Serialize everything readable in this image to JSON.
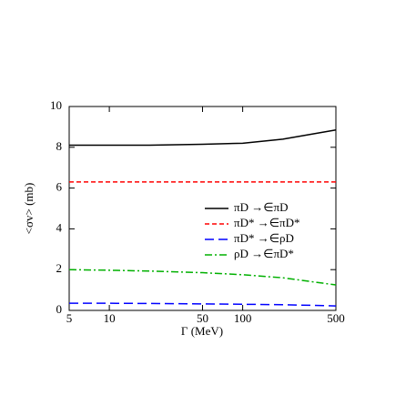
{
  "chart_data": {
    "type": "line",
    "xlabel": "Γ (MeV)",
    "ylabel": "<σv> (mb)",
    "x": [
      5,
      10,
      20,
      50,
      100,
      200,
      500
    ],
    "xscale": "log",
    "xlim": [
      5,
      500
    ],
    "xticks": [
      5,
      10,
      50,
      100,
      500
    ],
    "ylim": [
      0,
      10
    ],
    "yticks": [
      0,
      2,
      4,
      6,
      8,
      10
    ],
    "legend": "right",
    "series": [
      {
        "name": "πD →∈πD",
        "color": "#000000",
        "dash": "solid",
        "values": [
          8.1,
          8.1,
          8.1,
          8.15,
          8.2,
          8.4,
          8.85
        ]
      },
      {
        "name": "πD* →∈πD*",
        "color": "#ff0000",
        "dash": "dashed",
        "values": [
          6.3,
          6.3,
          6.3,
          6.3,
          6.3,
          6.3,
          6.3
        ]
      },
      {
        "name": "πD* →∈ρD",
        "color": "#0000ff",
        "dash": "longdash",
        "values": [
          0.35,
          0.35,
          0.34,
          0.32,
          0.3,
          0.28,
          0.22
        ]
      },
      {
        "name": "ρD →∈πD*",
        "color": "#00b000",
        "dash": "dashdot",
        "values": [
          2.0,
          1.97,
          1.93,
          1.85,
          1.75,
          1.6,
          1.25
        ]
      }
    ]
  }
}
